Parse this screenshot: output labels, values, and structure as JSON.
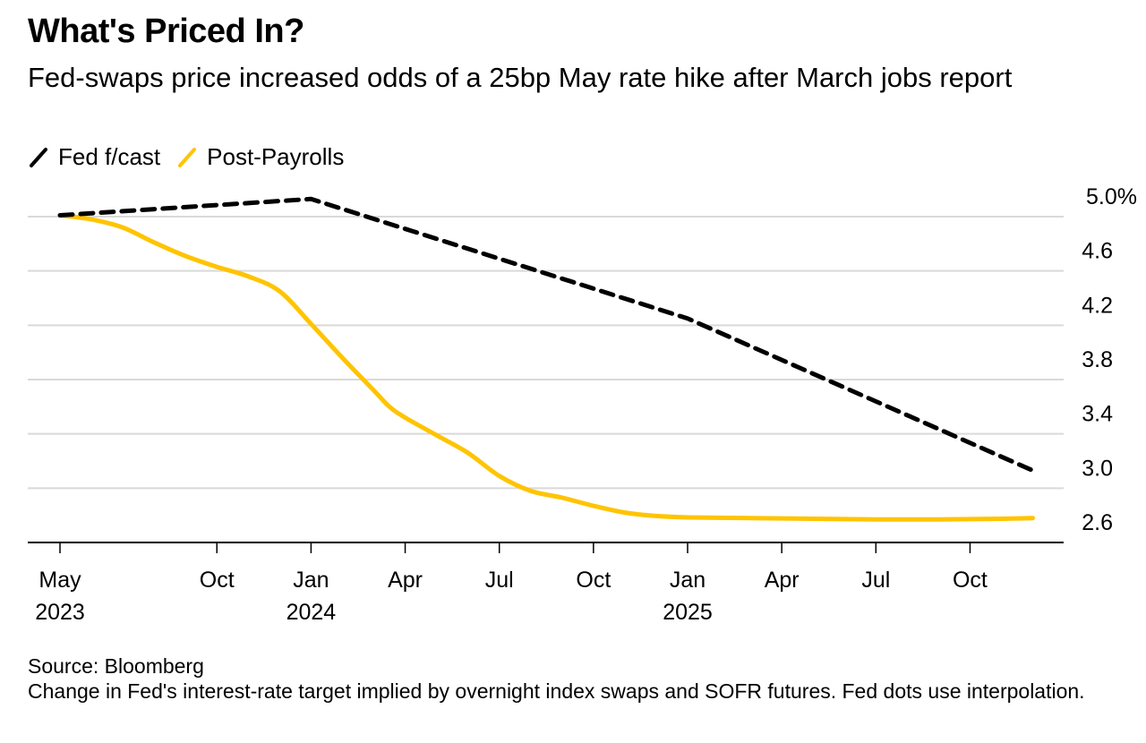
{
  "chart_data": {
    "type": "line",
    "title": "What's Priced In?",
    "subtitle": "Fed-swaps price increased odds of a 25bp May rate hike after March jobs report",
    "xlabel": "",
    "ylabel": "",
    "ylim": [
      2.6,
      5.0
    ],
    "y_ticks": [
      "5.0%",
      "4.6",
      "4.2",
      "3.8",
      "3.4",
      "3.0",
      "2.6"
    ],
    "y_tick_values": [
      5.0,
      4.6,
      4.2,
      3.8,
      3.4,
      3.0,
      2.6
    ],
    "x_ticks": [
      {
        "month": 0,
        "label": "May",
        "year": "2023"
      },
      {
        "month": 5,
        "label": "Oct",
        "year": ""
      },
      {
        "month": 8,
        "label": "Jan",
        "year": "2024"
      },
      {
        "month": 11,
        "label": "Apr",
        "year": ""
      },
      {
        "month": 14,
        "label": "Jul",
        "year": ""
      },
      {
        "month": 17,
        "label": "Oct",
        "year": ""
      },
      {
        "month": 20,
        "label": "Jan",
        "year": "2025"
      },
      {
        "month": 23,
        "label": "Apr",
        "year": ""
      },
      {
        "month": 26,
        "label": "Jul",
        "year": ""
      },
      {
        "month": 29,
        "label": "Oct",
        "year": ""
      }
    ],
    "xlim_months": [
      0,
      33.5
    ],
    "grid": true,
    "legend_position": "top-left",
    "series": [
      {
        "name": "Fed f/cast",
        "color": "#000000",
        "style": "dashed",
        "x_months": [
          0,
          8,
          20,
          31
        ],
        "values": [
          5.01,
          5.13,
          4.25,
          3.13
        ]
      },
      {
        "name": "Post-Payrolls",
        "color": "#FFC400",
        "style": "solid",
        "x_months": [
          0,
          1,
          2,
          3,
          4,
          5,
          6,
          7,
          8,
          9,
          10,
          10.5,
          11,
          12,
          13,
          14,
          15,
          16,
          17,
          18,
          19,
          20,
          22,
          24,
          26,
          28,
          30,
          31
        ],
        "values": [
          5.01,
          4.98,
          4.92,
          4.81,
          4.71,
          4.63,
          4.56,
          4.45,
          4.21,
          3.96,
          3.72,
          3.6,
          3.52,
          3.39,
          3.26,
          3.09,
          2.98,
          2.93,
          2.87,
          2.82,
          2.795,
          2.785,
          2.78,
          2.775,
          2.77,
          2.77,
          2.775,
          2.78
        ]
      }
    ]
  },
  "legend": [
    {
      "label": "Fed f/cast",
      "color": "#000000"
    },
    {
      "label": "Post-Payrolls",
      "color": "#FFC400"
    }
  ],
  "footer": {
    "source": "Source: Bloomberg",
    "note": "Change in Fed's interest-rate target implied by overnight index swaps and SOFR futures. Fed dots use interpolation."
  }
}
